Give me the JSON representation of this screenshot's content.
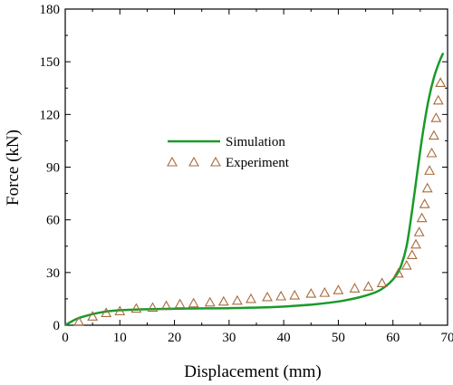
{
  "chart_data": {
    "type": "line",
    "title": "",
    "xlabel": "Displacement (mm)",
    "ylabel": "Force (kN)",
    "xlim": [
      0,
      70
    ],
    "ylim": [
      0,
      180
    ],
    "xticks": [
      0,
      10,
      20,
      30,
      40,
      50,
      60,
      70
    ],
    "yticks": [
      0,
      30,
      60,
      90,
      120,
      150,
      180
    ],
    "grid": false,
    "legend": {
      "placement": "center-left",
      "entries": [
        "Simulation",
        "Experiment"
      ]
    },
    "series": [
      {
        "name": "Simulation",
        "kind": "line",
        "color": "#1a9a2a",
        "x": [
          0,
          2,
          4,
          6,
          8,
          10,
          14,
          18,
          22,
          26,
          30,
          34,
          38,
          42,
          46,
          50,
          54,
          57,
          59,
          60.5,
          61.5,
          62.5,
          63.5,
          64.5,
          65.5,
          66.5,
          67.5,
          68.5,
          69.2
        ],
        "y": [
          0,
          3.5,
          5.5,
          7,
          8,
          8.5,
          9,
          9.3,
          9.5,
          9.6,
          9.7,
          10,
          10.3,
          11,
          12,
          13.5,
          16,
          19,
          23,
          28,
          34,
          45,
          65,
          88,
          110,
          128,
          141,
          150,
          155
        ]
      },
      {
        "name": "Experiment",
        "kind": "scatter",
        "marker": "triangle-open",
        "color": "#a86a3c",
        "x": [
          2.5,
          5,
          7.5,
          10,
          13,
          16,
          18.5,
          21,
          23.5,
          26.5,
          29,
          31.5,
          34,
          37,
          39.5,
          42,
          45,
          47.5,
          50,
          53,
          55.5,
          58,
          61,
          62.5,
          63.5,
          64.2,
          64.8,
          65.3,
          65.8,
          66.3,
          66.7,
          67.1,
          67.5,
          67.9,
          68.3,
          68.7
        ],
        "y": [
          2,
          5,
          7,
          8,
          9.5,
          10,
          11,
          12,
          12.5,
          13,
          13.5,
          14,
          15,
          16,
          16.5,
          17,
          18,
          18.5,
          20,
          21,
          22,
          24,
          29.5,
          34,
          40,
          46,
          53,
          61,
          69,
          78,
          88,
          98,
          108,
          118,
          128,
          138
        ]
      }
    ]
  }
}
